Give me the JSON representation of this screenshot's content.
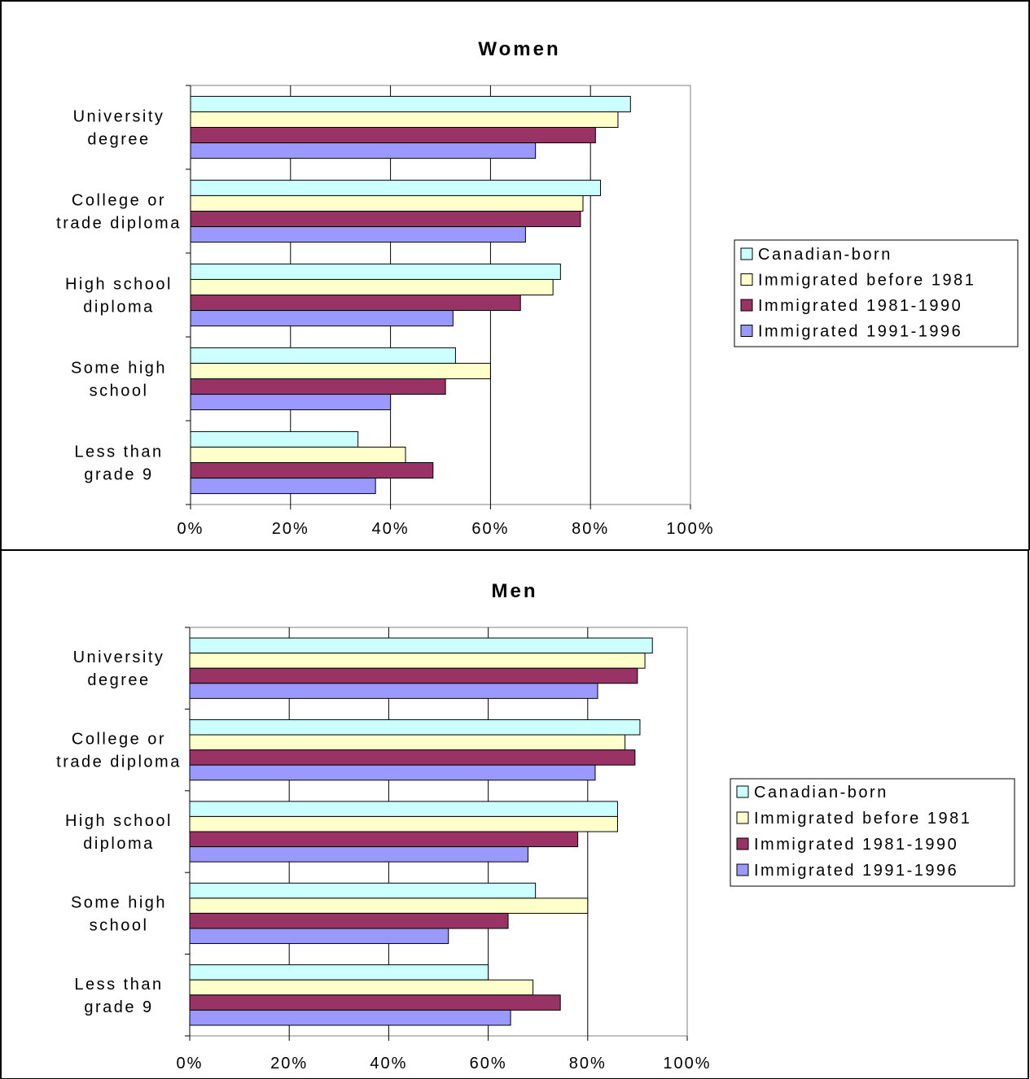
{
  "chart_data": [
    {
      "type": "bar",
      "orientation": "horizontal",
      "title": "Women",
      "categories": [
        "University degree",
        "College or trade diploma",
        "High school diploma",
        "Some high school",
        "Less than grade 9"
      ],
      "category_lines": [
        [
          "University",
          "degree"
        ],
        [
          "College  or",
          "trade diploma"
        ],
        [
          "High school",
          "diploma"
        ],
        [
          "Some high",
          "school"
        ],
        [
          "Less than",
          "grade 9"
        ]
      ],
      "xlim": [
        0,
        100
      ],
      "xticks": [
        "0%",
        "20%",
        "40%",
        "60%",
        "80%",
        "100%"
      ],
      "grid": true,
      "legend_position": "right",
      "series": [
        {
          "name": "Canadian-born",
          "color": "#ccffff",
          "values": [
            88,
            82,
            74,
            53,
            33.5
          ]
        },
        {
          "name": "Immigrated before 1981",
          "color": "#ffffcc",
          "values": [
            85.5,
            78.5,
            72.5,
            60,
            43
          ]
        },
        {
          "name": "Immigrated 1981-1990",
          "color": "#993366",
          "values": [
            81,
            78,
            66,
            51,
            48.5
          ]
        },
        {
          "name": "Immigrated 1991-1996",
          "color": "#9999ff",
          "values": [
            69,
            67,
            52.5,
            40,
            37
          ]
        }
      ]
    },
    {
      "type": "bar",
      "orientation": "horizontal",
      "title": "Men",
      "categories": [
        "University degree",
        "College or trade diploma",
        "High school diploma",
        "Some high school",
        "Less than grade 9"
      ],
      "category_lines": [
        [
          "University",
          "degree"
        ],
        [
          "College  or",
          "trade diploma"
        ],
        [
          "High school",
          "diploma"
        ],
        [
          "Some high",
          "school"
        ],
        [
          "Less than",
          "grade 9"
        ]
      ],
      "xlim": [
        0,
        100
      ],
      "xticks": [
        "0%",
        "20%",
        "40%",
        "60%",
        "80%",
        "100%"
      ],
      "grid": true,
      "legend_position": "right",
      "series": [
        {
          "name": "Canadian-born",
          "color": "#ccffff",
          "values": [
            93,
            90.5,
            86,
            69.5,
            60
          ]
        },
        {
          "name": "Immigrated before 1981",
          "color": "#ffffcc",
          "values": [
            91.5,
            87.5,
            86,
            80,
            69
          ]
        },
        {
          "name": "Immigrated 1981-1990",
          "color": "#993366",
          "values": [
            90,
            89.5,
            78,
            64,
            74.5
          ]
        },
        {
          "name": "Immigrated 1991-1996",
          "color": "#9999ff",
          "values": [
            82,
            81.5,
            68,
            52,
            64.5
          ]
        }
      ]
    }
  ]
}
